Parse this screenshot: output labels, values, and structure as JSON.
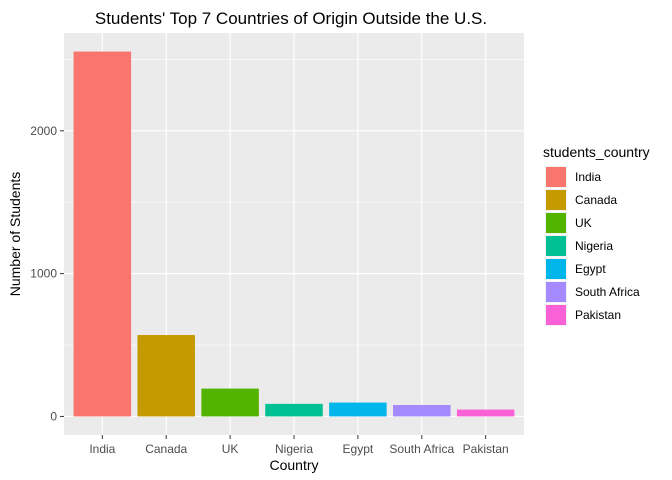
{
  "chart_data": {
    "type": "bar",
    "title": "Students' Top 7 Countries of Origin Outside the U.S.",
    "xlabel": "Country",
    "ylabel": "Number of Students",
    "categories": [
      "India",
      "Canada",
      "UK",
      "Nigeria",
      "Egypt",
      "South Africa",
      "Pakistan"
    ],
    "values": [
      2555,
      570,
      195,
      88,
      97,
      80,
      48
    ],
    "colors": [
      "#F8766D",
      "#C49A00",
      "#53B400",
      "#00C094",
      "#00B6EB",
      "#A58AFF",
      "#FB61D7"
    ],
    "ylim": [
      -130,
      2685
    ],
    "yticks": [
      0,
      1000,
      2000
    ],
    "ytick_labels": [
      "0",
      "1000",
      "2000"
    ],
    "grid": true,
    "panel_background": "#EBEBEB",
    "legend": {
      "title": "students_country",
      "position": "right",
      "entries": [
        "India",
        "Canada",
        "UK",
        "Nigeria",
        "Egypt",
        "South Africa",
        "Pakistan"
      ]
    }
  }
}
